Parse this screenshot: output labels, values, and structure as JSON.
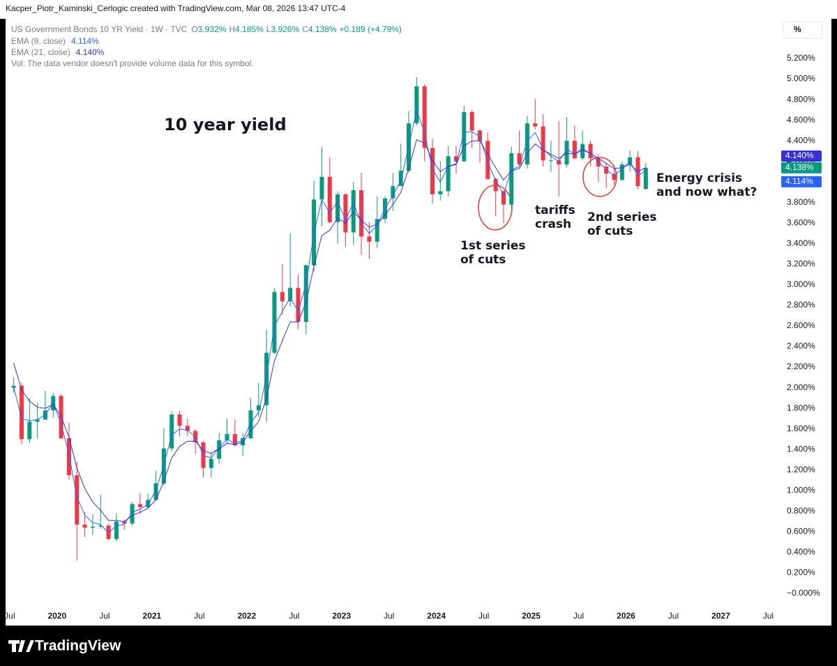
{
  "header": "Kacper_Piotr_Kaminski_Cerlogic created with TradingView.com, Mar 08, 2026 13:47 UTC-4",
  "brand": "TradingView",
  "chart_data": {
    "type": "candlestick",
    "legend_title": "US Government Bonds 10 YR Yield · 1W · TVC",
    "ohlc_legend": [
      {
        "label": "O",
        "value": "3.932%"
      },
      {
        "label": "H",
        "value": "4.185%"
      },
      {
        "label": "L",
        "value": "3.926%"
      },
      {
        "label": "C",
        "value": "4.138%"
      }
    ],
    "change": "+0.189 (+4.79%)",
    "volume_note": "Vol: The data vendor doesn't provide volume data for this symbol.",
    "scale_button": "%",
    "up_color": "#089981",
    "down_color": "#f23645",
    "candles": {
      "x": [
        "2019-07",
        "2019-08",
        "2019-09",
        "2019-10",
        "2019-11",
        "2019-12",
        "2020-01",
        "2020-02",
        "2020-03",
        "2020-04",
        "2020-05",
        "2020-06",
        "2020-07",
        "2020-08",
        "2020-09",
        "2020-10",
        "2020-11",
        "2020-12",
        "2021-01",
        "2021-02",
        "2021-03",
        "2021-04",
        "2021-05",
        "2021-06",
        "2021-07",
        "2021-08",
        "2021-09",
        "2021-10",
        "2021-11",
        "2021-12",
        "2022-01",
        "2022-02",
        "2022-03",
        "2022-04",
        "2022-05",
        "2022-06",
        "2022-07",
        "2022-08",
        "2022-09",
        "2022-10",
        "2022-11",
        "2022-12",
        "2023-01",
        "2023-02",
        "2023-03",
        "2023-04",
        "2023-05",
        "2023-06",
        "2023-07",
        "2023-08",
        "2023-09",
        "2023-10",
        "2023-11",
        "2023-12",
        "2024-01",
        "2024-02",
        "2024-03",
        "2024-04",
        "2024-05",
        "2024-06",
        "2024-07",
        "2024-08",
        "2024-09",
        "2024-10",
        "2024-11",
        "2024-12",
        "2025-01",
        "2025-02",
        "2025-03",
        "2025-04",
        "2025-05",
        "2025-06",
        "2025-07",
        "2025-08",
        "2025-09",
        "2025-10",
        "2025-11",
        "2025-12",
        "2026-01",
        "2026-02",
        "2026-03"
      ],
      "open": [
        2.0,
        2.02,
        1.5,
        1.67,
        1.69,
        1.78,
        1.92,
        1.51,
        1.15,
        0.67,
        0.64,
        0.65,
        0.66,
        0.53,
        0.7,
        0.68,
        0.87,
        0.84,
        0.91,
        1.07,
        1.41,
        1.74,
        1.63,
        1.58,
        1.47,
        1.22,
        1.31,
        1.49,
        1.55,
        1.44,
        1.51,
        1.78,
        1.83,
        2.34,
        2.93,
        2.84,
        2.97,
        2.64,
        3.19,
        3.83,
        4.05,
        3.61,
        3.88,
        3.51,
        3.92,
        3.47,
        3.42,
        3.64,
        3.84,
        3.96,
        4.11,
        4.57,
        4.93,
        4.33,
        3.88,
        3.91,
        4.25,
        4.2,
        4.68,
        4.5,
        4.4,
        4.03,
        3.91,
        3.78,
        4.28,
        4.17,
        4.57,
        4.54,
        4.21,
        4.21,
        4.17,
        4.4,
        4.23,
        4.37,
        4.23,
        4.15,
        4.08,
        4.02,
        4.17,
        4.24,
        3.932
      ],
      "high": [
        2.1,
        2.05,
        1.9,
        1.85,
        1.97,
        1.95,
        1.94,
        1.66,
        1.28,
        0.79,
        0.77,
        0.96,
        0.68,
        0.78,
        0.72,
        0.89,
        0.98,
        0.97,
        1.19,
        1.61,
        1.77,
        1.77,
        1.7,
        1.6,
        1.48,
        1.38,
        1.56,
        1.7,
        1.69,
        1.56,
        1.9,
        2.05,
        2.56,
        2.97,
        3.2,
        3.5,
        3.1,
        3.2,
        4.01,
        4.34,
        4.24,
        3.91,
        3.89,
        4.0,
        4.09,
        3.61,
        3.86,
        3.86,
        4.09,
        4.37,
        4.69,
        5.02,
        4.95,
        4.42,
        4.2,
        4.35,
        4.35,
        4.74,
        4.7,
        4.51,
        4.48,
        4.04,
        3.92,
        4.34,
        4.5,
        4.64,
        4.81,
        4.66,
        4.4,
        4.59,
        4.63,
        4.55,
        4.5,
        4.4,
        4.27,
        4.18,
        4.16,
        4.2,
        4.31,
        4.3,
        4.185
      ],
      "low": [
        1.95,
        1.45,
        1.46,
        1.51,
        1.7,
        1.71,
        1.5,
        1.11,
        0.32,
        0.55,
        0.57,
        0.63,
        0.52,
        0.51,
        0.62,
        0.66,
        0.77,
        0.82,
        0.9,
        1.05,
        1.38,
        1.53,
        1.53,
        1.36,
        1.13,
        1.13,
        1.26,
        1.46,
        1.43,
        1.34,
        1.5,
        1.72,
        1.67,
        2.33,
        2.71,
        2.79,
        2.57,
        2.52,
        3.13,
        3.57,
        3.6,
        3.4,
        3.37,
        3.39,
        3.29,
        3.25,
        3.36,
        3.6,
        3.72,
        3.96,
        4.09,
        4.55,
        4.2,
        3.79,
        3.82,
        3.86,
        4.08,
        4.2,
        4.33,
        4.19,
        4.02,
        3.67,
        3.6,
        3.74,
        4.16,
        4.13,
        4.51,
        4.15,
        4.1,
        3.86,
        4.14,
        4.22,
        4.21,
        4.15,
        4.0,
        3.94,
        3.97,
        4.01,
        4.1,
        3.93,
        3.926
      ],
      "close": [
        2.02,
        1.5,
        1.67,
        1.69,
        1.78,
        1.92,
        1.51,
        1.15,
        0.67,
        0.64,
        0.65,
        0.66,
        0.53,
        0.7,
        0.68,
        0.87,
        0.84,
        0.91,
        1.07,
        1.41,
        1.74,
        1.63,
        1.58,
        1.47,
        1.22,
        1.31,
        1.49,
        1.55,
        1.44,
        1.51,
        1.78,
        1.83,
        2.34,
        2.93,
        2.84,
        2.97,
        2.64,
        3.19,
        3.83,
        4.05,
        3.61,
        3.88,
        3.51,
        3.92,
        3.47,
        3.42,
        3.64,
        3.84,
        3.96,
        4.11,
        4.57,
        4.93,
        4.33,
        3.88,
        3.91,
        4.25,
        4.2,
        4.68,
        4.5,
        4.4,
        4.03,
        3.91,
        3.78,
        4.28,
        4.17,
        4.57,
        4.54,
        4.21,
        4.21,
        4.17,
        4.4,
        4.23,
        4.37,
        4.23,
        4.15,
        4.08,
        4.02,
        4.17,
        4.24,
        3.96,
        4.138
      ]
    },
    "overlays": [
      {
        "name": "EMA (9, close)",
        "value_label": "4.114%",
        "color": "#2962ff",
        "values": [
          2.01,
          1.7,
          1.68,
          1.69,
          1.74,
          1.85,
          1.65,
          1.35,
          0.94,
          0.76,
          0.69,
          0.67,
          0.59,
          0.66,
          0.67,
          0.79,
          0.82,
          0.87,
          1.0,
          1.25,
          1.54,
          1.6,
          1.59,
          1.52,
          1.34,
          1.32,
          1.42,
          1.5,
          1.46,
          1.49,
          1.66,
          1.76,
          2.11,
          2.6,
          2.74,
          2.88,
          2.74,
          3.01,
          3.5,
          3.83,
          3.7,
          3.81,
          3.63,
          3.8,
          3.6,
          3.5,
          3.58,
          3.74,
          3.87,
          4.01,
          4.35,
          4.7,
          4.48,
          4.12,
          4.0,
          4.15,
          4.18,
          4.48,
          4.49,
          4.44,
          4.19,
          4.02,
          3.88,
          4.12,
          4.15,
          4.4,
          4.48,
          4.32,
          4.25,
          4.2,
          4.32,
          4.27,
          4.33,
          4.27,
          4.2,
          4.12,
          4.06,
          4.13,
          4.2,
          4.06,
          4.114
        ]
      },
      {
        "name": "EMA (21, close)",
        "value_label": "4.140%",
        "color": "#3a2fd6",
        "values": [
          2.24,
          1.98,
          1.87,
          1.81,
          1.8,
          1.84,
          1.72,
          1.52,
          1.22,
          1.02,
          0.89,
          0.81,
          0.71,
          0.71,
          0.7,
          0.76,
          0.79,
          0.83,
          0.91,
          1.09,
          1.32,
          1.43,
          1.48,
          1.48,
          1.39,
          1.36,
          1.41,
          1.46,
          1.45,
          1.47,
          1.58,
          1.67,
          1.9,
          2.26,
          2.46,
          2.64,
          2.64,
          2.83,
          3.18,
          3.48,
          3.53,
          3.65,
          3.6,
          3.71,
          3.63,
          3.56,
          3.59,
          3.68,
          3.78,
          3.9,
          4.13,
          4.41,
          4.38,
          4.21,
          4.1,
          4.15,
          4.17,
          4.35,
          4.4,
          4.4,
          4.27,
          4.14,
          4.02,
          4.11,
          4.13,
          4.28,
          4.37,
          4.31,
          4.27,
          4.23,
          4.28,
          4.27,
          4.31,
          4.28,
          4.23,
          4.18,
          4.13,
          4.14,
          4.17,
          4.1,
          4.14
        ]
      }
    ],
    "price_badges": [
      {
        "value": 4.14,
        "label": "4.140%",
        "color": "#3a2fd6"
      },
      {
        "value": 4.138,
        "label": "4.138%",
        "color": "#089981"
      },
      {
        "value": 4.114,
        "label": "4.114%",
        "color": "#2962ff"
      }
    ],
    "annotations": [
      {
        "lines": [
          "10 year yield"
        ]
      },
      {
        "lines": [
          "1st series",
          "of cuts"
        ]
      },
      {
        "lines": [
          "tariffs",
          "crash"
        ]
      },
      {
        "lines": [
          "2nd series",
          "of cuts"
        ]
      },
      {
        "lines": [
          "Energy crisis",
          "and now what?"
        ]
      }
    ],
    "xlim": [
      2019.456,
      2027.6
    ],
    "xticks": [
      {
        "value": 2019.5,
        "label": "Jul"
      },
      2020,
      {
        "value": 2020.5,
        "label": "Jul"
      },
      2021,
      {
        "value": 2021.5,
        "label": "Jul"
      },
      2022,
      {
        "value": 2022.5,
        "label": "Jul"
      },
      2023,
      {
        "value": 2023.5,
        "label": "Jul"
      },
      2024,
      {
        "value": 2024.5,
        "label": "Jul"
      },
      2025,
      {
        "value": 2025.5,
        "label": "Jul"
      },
      2026,
      {
        "value": 2026.5,
        "label": "Jul"
      },
      2027,
      {
        "value": 2027.5,
        "label": "Jul"
      }
    ],
    "ylim": [
      -0.122,
      5.586
    ],
    "yticks": [
      {
        "value": 0,
        "label": "−0.000%"
      },
      {
        "value": 0.2,
        "label": "0.200%"
      },
      {
        "value": 0.4,
        "label": "0.400%"
      },
      {
        "value": 0.6,
        "label": "0.600%"
      },
      {
        "value": 0.8,
        "label": "0.800%"
      },
      {
        "value": 1.0,
        "label": "1.000%"
      },
      {
        "value": 1.2,
        "label": "1.200%"
      },
      {
        "value": 1.4,
        "label": "1.400%"
      },
      {
        "value": 1.6,
        "label": "1.600%"
      },
      {
        "value": 1.8,
        "label": "1.800%"
      },
      {
        "value": 2.0,
        "label": "2.000%"
      },
      {
        "value": 2.2,
        "label": "2.200%"
      },
      {
        "value": 2.4,
        "label": "2.400%"
      },
      {
        "value": 2.6,
        "label": "2.600%"
      },
      {
        "value": 2.8,
        "label": "2.800%"
      },
      {
        "value": 3.0,
        "label": "3.000%"
      },
      {
        "value": 3.2,
        "label": "3.200%"
      },
      {
        "value": 3.4,
        "label": "3.400%"
      },
      {
        "value": 3.6,
        "label": "3.600%"
      },
      {
        "value": 3.8,
        "label": "3.800%"
      },
      {
        "value": 4.0,
        "label": "4.000%"
      },
      {
        "value": 4.2,
        "label": "4.200%"
      },
      {
        "value": 4.4,
        "label": "4.400%"
      },
      {
        "value": 4.6,
        "label": "4.600%"
      },
      {
        "value": 4.8,
        "label": "4.800%"
      },
      {
        "value": 5.0,
        "label": "5.000%"
      },
      {
        "value": 5.2,
        "label": "5.200%"
      }
    ],
    "grid": false
  }
}
